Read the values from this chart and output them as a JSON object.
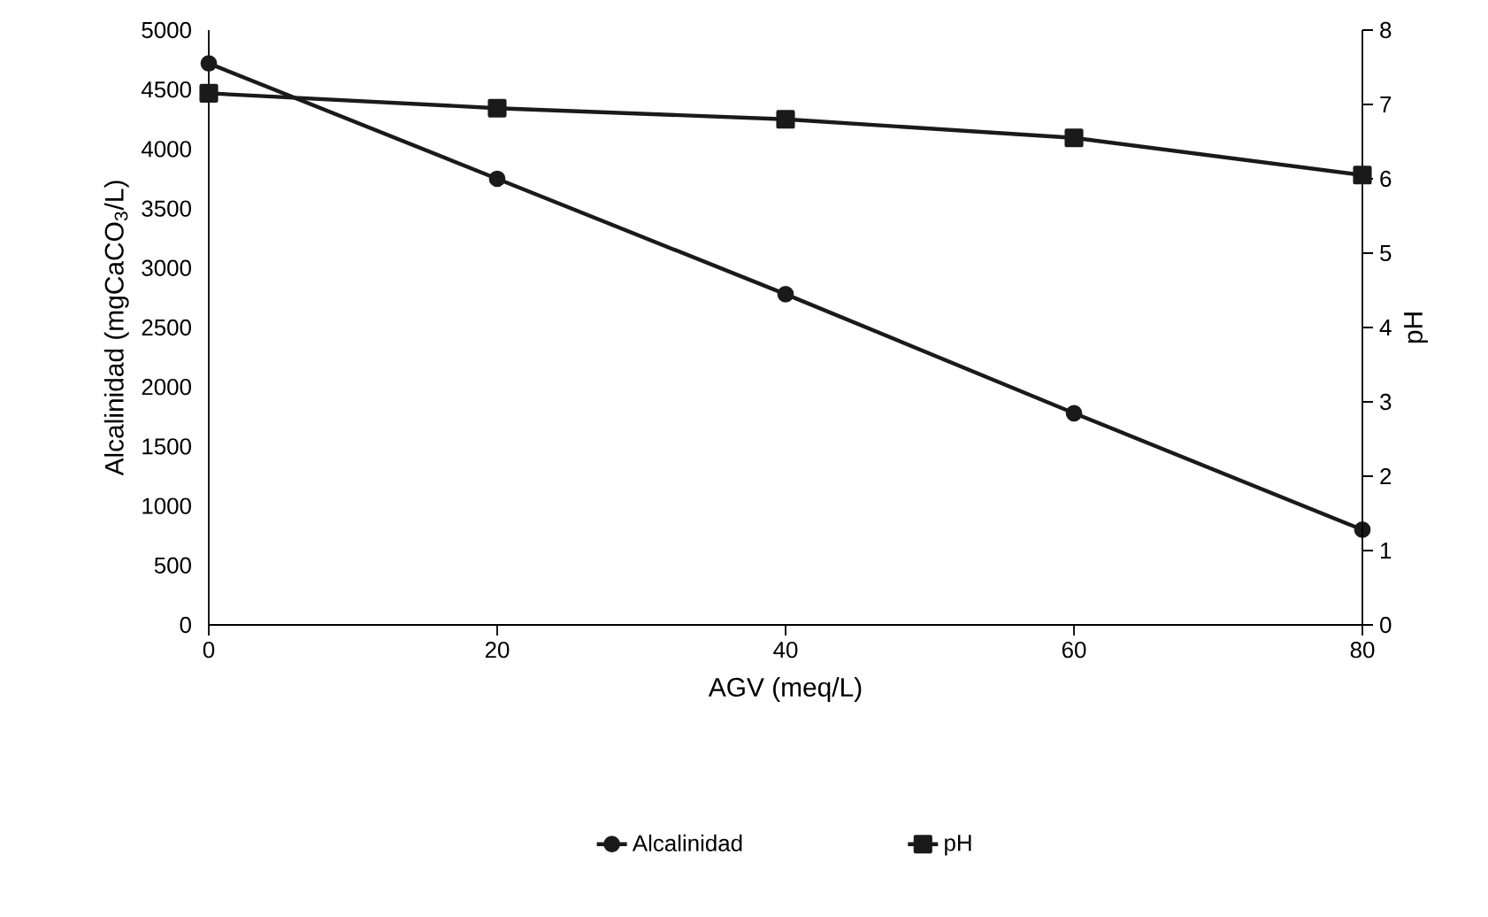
{
  "chart_data": {
    "type": "line",
    "xlabel": "AGV (meq/L)",
    "ylabel": "Alcalinidad (mgCaCO$_{3}$/L)",
    "y2label": "pH",
    "x": [
      0,
      20,
      40,
      60,
      80
    ],
    "xlim": [
      0,
      80
    ],
    "xticks": [
      0,
      20,
      40,
      60,
      80
    ],
    "ylim": [
      0,
      5000
    ],
    "yticks": [
      0,
      500,
      1000,
      1500,
      2000,
      2500,
      3000,
      3500,
      4000,
      4500,
      5000
    ],
    "y2lim": [
      0,
      8
    ],
    "y2ticks": [
      0,
      1,
      2,
      3,
      4,
      5,
      6,
      7,
      8
    ],
    "series": [
      {
        "name": "Alcalinidad",
        "color": "#1a1a1a",
        "marker": "circle",
        "values": [
          4720,
          3750,
          2780,
          1780,
          800
        ]
      },
      {
        "name": "pH",
        "color": "#1a1a1a",
        "marker": "square",
        "axis": "y2",
        "values": [
          7.15,
          6.95,
          6.8,
          6.55,
          6.05
        ]
      }
    ],
    "legend": "bottom",
    "grid": false,
    "line_style": "solid"
  }
}
